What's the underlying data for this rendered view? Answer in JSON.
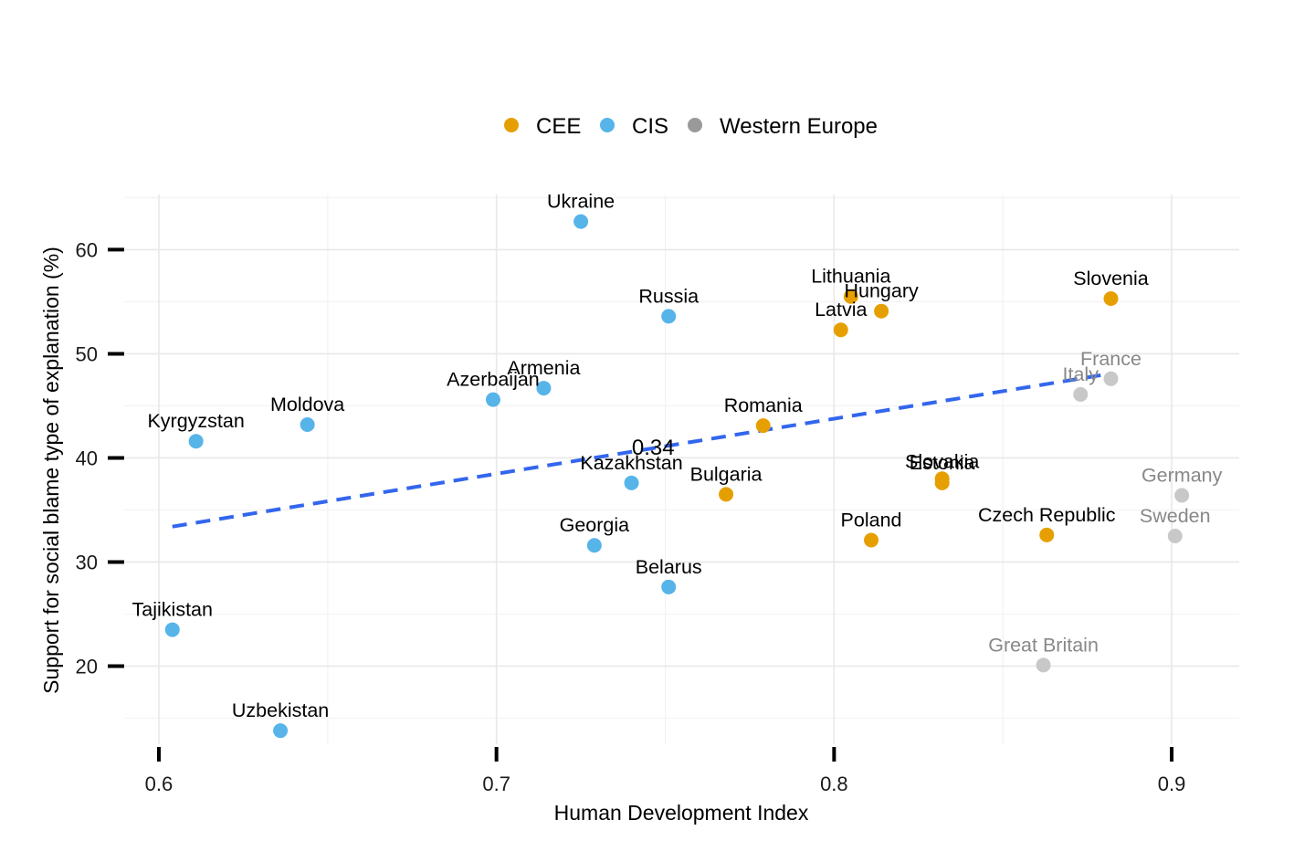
{
  "chart_data": {
    "type": "scatter",
    "xlabel": "Human Development Index",
    "ylabel": "Support for social blame type of explanation (%)",
    "xlim": [
      0.59,
      0.92
    ],
    "ylim": [
      12.5,
      65.3
    ],
    "x_ticks": [
      0.6,
      0.7,
      0.8,
      0.9
    ],
    "x_tick_labels": [
      "0.6",
      "0.7",
      "0.8",
      "0.9"
    ],
    "y_ticks": [
      20,
      30,
      40,
      50,
      60
    ],
    "y_tick_labels": [
      "20",
      "30",
      "40",
      "50",
      "60"
    ],
    "grid": true,
    "legend": {
      "placement": "top",
      "entries": [
        {
          "name": "CEE",
          "color": "#E69F00"
        },
        {
          "name": "CIS",
          "color": "#56B4E9"
        },
        {
          "name": "Western Europe",
          "color": "#999999"
        }
      ]
    },
    "series": [
      {
        "name": "CEE",
        "color": "#E69F00",
        "points": [
          {
            "label": "Lithuania",
            "x": 0.805,
            "y": 55.5
          },
          {
            "label": "Hungary",
            "x": 0.814,
            "y": 54.1
          },
          {
            "label": "Latvia",
            "x": 0.802,
            "y": 52.3
          },
          {
            "label": "Slovenia",
            "x": 0.882,
            "y": 55.3
          },
          {
            "label": "Romania",
            "x": 0.779,
            "y": 43.1
          },
          {
            "label": "Slovakia",
            "x": 0.832,
            "y": 38.0
          },
          {
            "label": "Estonia",
            "x": 0.832,
            "y": 37.6
          },
          {
            "label": "Bulgaria",
            "x": 0.768,
            "y": 36.5
          },
          {
            "label": "Poland",
            "x": 0.811,
            "y": 32.1
          },
          {
            "label": "Czech Republic",
            "x": 0.863,
            "y": 32.6
          }
        ]
      },
      {
        "name": "CIS",
        "color": "#56B4E9",
        "points": [
          {
            "label": "Ukraine",
            "x": 0.725,
            "y": 62.7
          },
          {
            "label": "Russia",
            "x": 0.751,
            "y": 53.6
          },
          {
            "label": "Armenia",
            "x": 0.714,
            "y": 46.7
          },
          {
            "label": "Azerbaijan",
            "x": 0.699,
            "y": 45.6
          },
          {
            "label": "Moldova",
            "x": 0.644,
            "y": 43.2
          },
          {
            "label": "Kyrgyzstan",
            "x": 0.611,
            "y": 41.6
          },
          {
            "label": "Kazakhstan",
            "x": 0.74,
            "y": 37.6
          },
          {
            "label": "Georgia",
            "x": 0.729,
            "y": 31.6
          },
          {
            "label": "Belarus",
            "x": 0.751,
            "y": 27.6
          },
          {
            "label": "Tajikistan",
            "x": 0.604,
            "y": 23.5
          },
          {
            "label": "Uzbekistan",
            "x": 0.636,
            "y": 13.8
          }
        ]
      },
      {
        "name": "Western Europe",
        "color": "#C8C8C8",
        "points": [
          {
            "label": "France",
            "x": 0.882,
            "y": 47.6
          },
          {
            "label": "Italy",
            "x": 0.873,
            "y": 46.1
          },
          {
            "label": "Germany",
            "x": 0.903,
            "y": 36.4
          },
          {
            "label": "Sweden",
            "x": 0.901,
            "y": 32.5
          },
          {
            "label": "Great Britain",
            "x": 0.862,
            "y": 20.1
          }
        ]
      }
    ],
    "trend_line": {
      "x": [
        0.604,
        0.882
      ],
      "y": [
        33.4,
        48.1
      ],
      "color": "#3366EE",
      "style": "dashed"
    },
    "annotations": [
      {
        "text": "0.34",
        "x": 0.751,
        "y": 41.1
      }
    ]
  }
}
